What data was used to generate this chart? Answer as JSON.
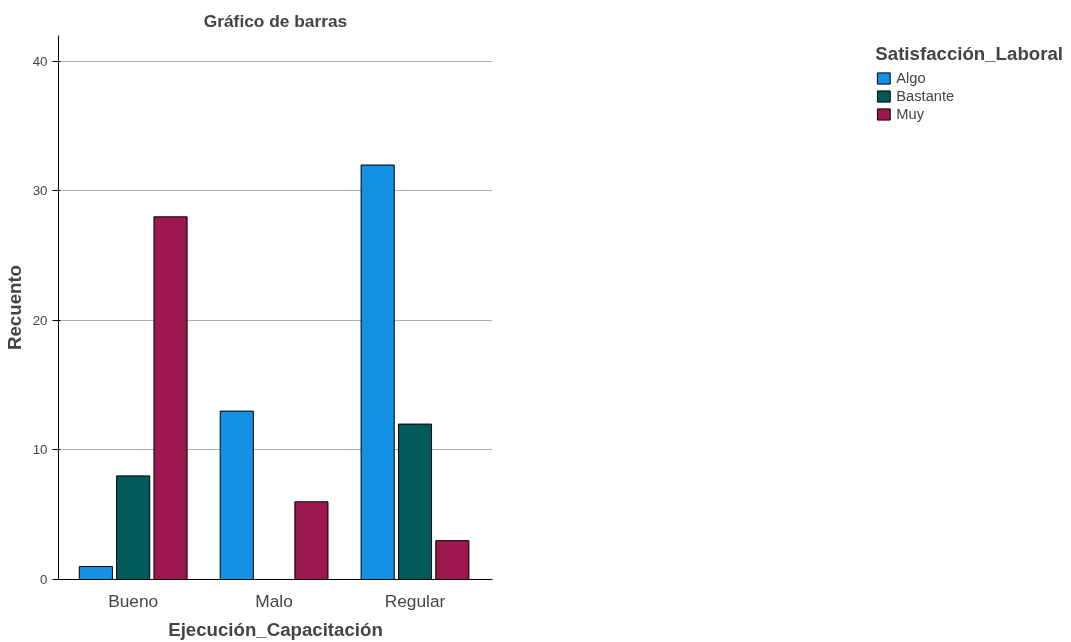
{
  "chart_data": {
    "type": "bar",
    "title": "Gráfico de barras",
    "xlabel": "Ejecución_Capacitación",
    "ylabel": "Recuento",
    "legend_title": "Satisfacción_Laboral",
    "categories": [
      "Bueno",
      "Malo",
      "Regular"
    ],
    "series": [
      {
        "name": "Algo",
        "color": "#1491e5",
        "values": [
          1,
          13,
          32
        ]
      },
      {
        "name": "Bastante",
        "color": "#005a5a",
        "values": [
          8,
          null,
          12
        ]
      },
      {
        "name": "Muy",
        "color": "#9c174b",
        "values": [
          28,
          6,
          3
        ]
      }
    ],
    "ylim": [
      0,
      42
    ],
    "yticks": [
      0,
      10,
      20,
      30,
      40
    ],
    "grid": "y",
    "legend": "top right"
  }
}
